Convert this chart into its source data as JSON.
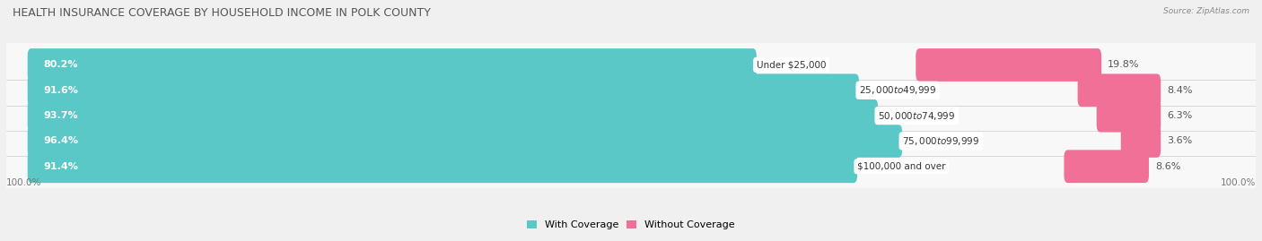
{
  "title": "HEALTH INSURANCE COVERAGE BY HOUSEHOLD INCOME IN POLK COUNTY",
  "source": "Source: ZipAtlas.com",
  "categories": [
    "Under $25,000",
    "$25,000 to $49,999",
    "$50,000 to $74,999",
    "$75,000 to $99,999",
    "$100,000 and over"
  ],
  "with_coverage": [
    80.2,
    91.6,
    93.7,
    96.4,
    91.4
  ],
  "without_coverage": [
    19.8,
    8.4,
    6.3,
    3.6,
    8.6
  ],
  "color_coverage": "#5bc8c8",
  "color_no_coverage": "#f07098",
  "bg_color": "#f0f0f0",
  "row_bg": "#e8e8e8",
  "row_light": "#ffffff",
  "title_fontsize": 9,
  "label_fontsize": 8,
  "legend_fontsize": 8,
  "bar_height": 0.7,
  "total_width": 100.0,
  "bar_scale": 0.72
}
